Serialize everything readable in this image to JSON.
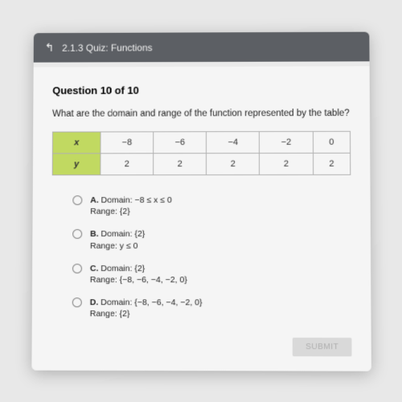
{
  "header": {
    "back_icon": "↱",
    "title": "2.1.3 Quiz: Functions"
  },
  "question": {
    "number_label": "Question 10 of 10",
    "prompt": "What are the domain and range of the function represented by the table?"
  },
  "table": {
    "row_x_label": "x",
    "row_y_label": "y",
    "x": [
      "−8",
      "−6",
      "−4",
      "−2",
      "0"
    ],
    "y": [
      "2",
      "2",
      "2",
      "2",
      "2"
    ],
    "header_bg": "#c9e265",
    "border_color": "#b8b8b8"
  },
  "choices": [
    {
      "letter": "A.",
      "line1": "Domain: −8 ≤ x ≤ 0",
      "line2": "Range: {2}"
    },
    {
      "letter": "B.",
      "line1": "Domain: {2}",
      "line2": "Range: y ≤ 0"
    },
    {
      "letter": "C.",
      "line1": "Domain: {2}",
      "line2": "Range: {−8, −6, −4, −2, 0}"
    },
    {
      "letter": "D.",
      "line1": "Domain: {−8, −6, −4, −2, 0}",
      "line2": "Range: {2}"
    }
  ],
  "submit_label": "SUBMIT"
}
